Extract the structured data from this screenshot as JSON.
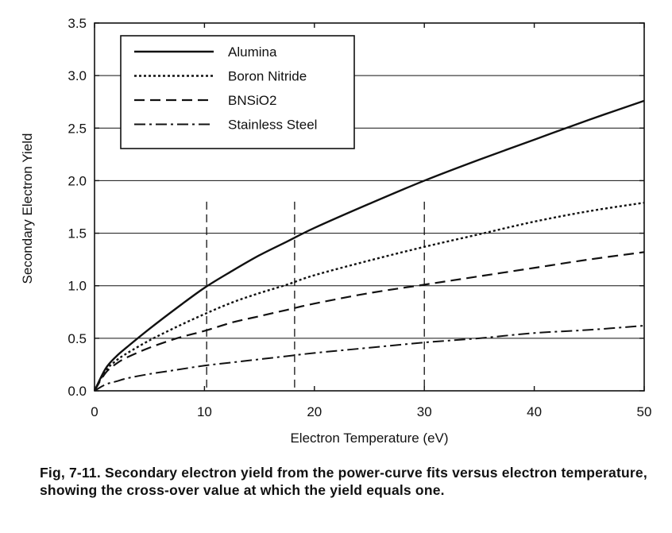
{
  "chart_data": {
    "type": "line",
    "xlabel": "Electron Temperature (eV)",
    "ylabel": "Secondary Electron Yield",
    "xlim": [
      0,
      50
    ],
    "ylim": [
      0,
      3.5
    ],
    "xticks": [
      0,
      10,
      20,
      30,
      40,
      50
    ],
    "yticks": [
      0.0,
      0.5,
      1.0,
      1.5,
      2.0,
      2.5,
      3.0,
      3.5
    ],
    "xtick_labels": [
      "0",
      "10",
      "20",
      "30",
      "40",
      "50"
    ],
    "ytick_labels": [
      "0.0",
      "0.5",
      "1.0",
      "1.5",
      "2.0",
      "2.5",
      "3.0",
      "3.5"
    ],
    "grid": "horizontal",
    "legend_position": "top-left",
    "series": [
      {
        "name": "Alumina",
        "style": "solid",
        "x": [
          0,
          1,
          2,
          3,
          5,
          7.5,
          10,
          12.5,
          15,
          17.5,
          20,
          25,
          30,
          35,
          40,
          45,
          50
        ],
        "y": [
          0,
          0.21,
          0.33,
          0.42,
          0.59,
          0.79,
          0.98,
          1.14,
          1.29,
          1.42,
          1.55,
          1.78,
          2.0,
          2.2,
          2.39,
          2.58,
          2.76
        ]
      },
      {
        "name": "Boron Nitride",
        "style": "dotted",
        "x": [
          0,
          1,
          2,
          3,
          5,
          7.5,
          10,
          12.5,
          15,
          17.5,
          20,
          25,
          30,
          35,
          40,
          45,
          50
        ],
        "y": [
          0,
          0.19,
          0.29,
          0.36,
          0.48,
          0.61,
          0.73,
          0.84,
          0.93,
          1.01,
          1.1,
          1.24,
          1.37,
          1.49,
          1.61,
          1.71,
          1.79
        ]
      },
      {
        "name": "BNSiO2",
        "style": "dashed",
        "x": [
          0,
          1,
          2,
          3,
          5,
          7.5,
          10,
          12.5,
          15,
          17.5,
          20,
          25,
          30,
          35,
          40,
          45,
          50
        ],
        "y": [
          0,
          0.17,
          0.26,
          0.32,
          0.41,
          0.5,
          0.57,
          0.65,
          0.71,
          0.77,
          0.83,
          0.93,
          1.01,
          1.09,
          1.17,
          1.25,
          1.32
        ]
      },
      {
        "name": "Stainless Steel",
        "style": "dash-dot",
        "x": [
          0,
          1,
          2,
          3,
          5,
          7.5,
          10,
          12.5,
          15,
          17.5,
          20,
          25,
          30,
          35,
          40,
          45,
          50
        ],
        "y": [
          0,
          0.06,
          0.09,
          0.12,
          0.16,
          0.2,
          0.24,
          0.27,
          0.3,
          0.33,
          0.36,
          0.41,
          0.46,
          0.5,
          0.55,
          0.58,
          0.62
        ]
      }
    ],
    "crossover_markers": [
      {
        "x": 10.2,
        "y_top": 1.8,
        "y_bottom": 0
      },
      {
        "x": 18.2,
        "y_top": 1.8,
        "y_bottom": 0
      },
      {
        "x": 30.0,
        "y_top": 1.8,
        "y_bottom": 0
      }
    ]
  },
  "caption": "Fig, 7-11. Secondary electron yield from the power-curve fits versus electron temperature, showing the cross-over value at which the yield equals one.",
  "colors": {
    "ink": "#111111",
    "background": "#ffffff"
  }
}
